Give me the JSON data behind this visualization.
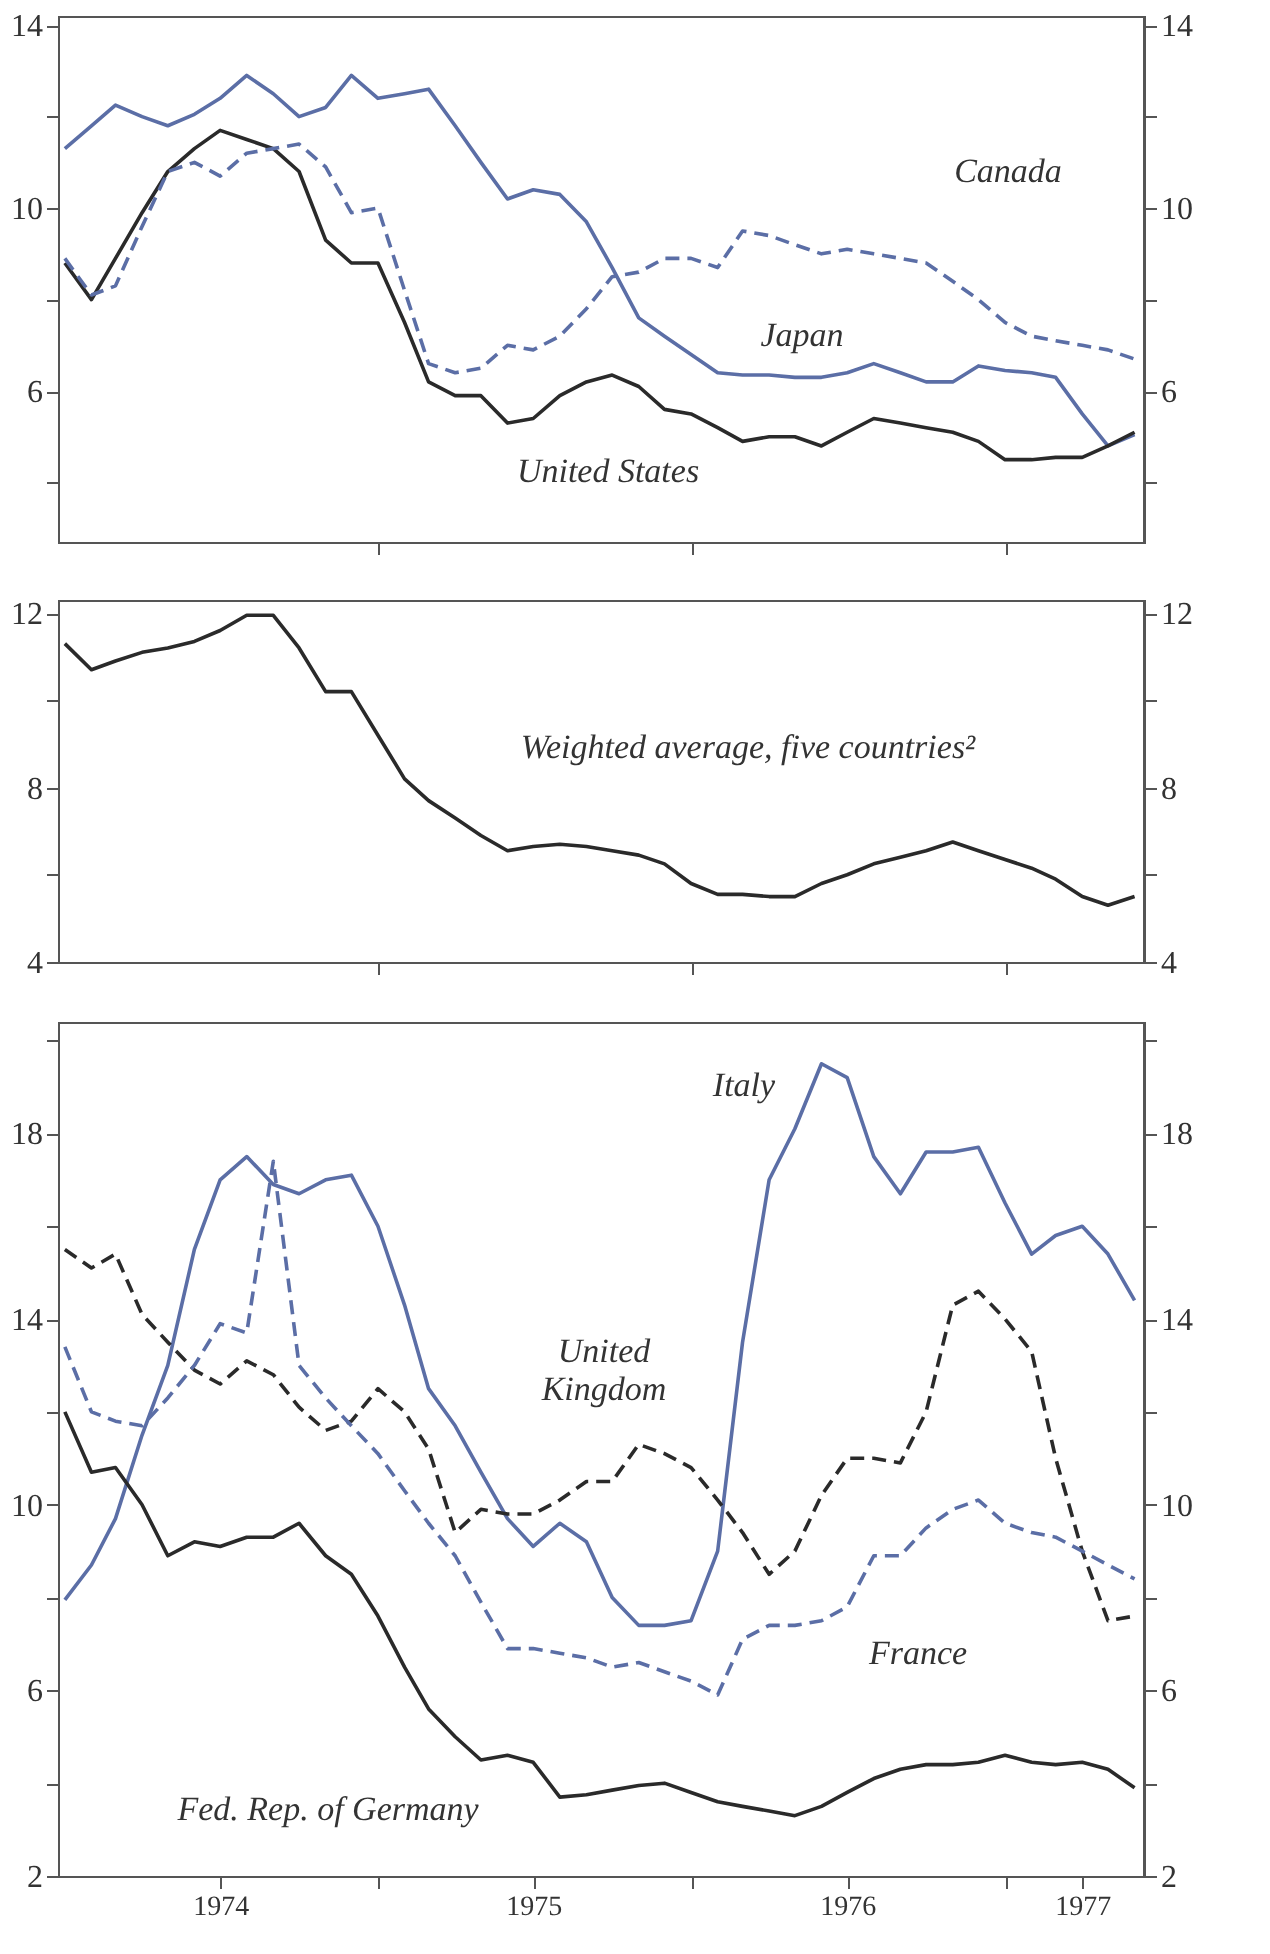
{
  "chart_data": [
    {
      "type": "line",
      "grid": false,
      "legend": false,
      "tick_labels": "y",
      "x": [
        "1974-01",
        "1974-02",
        "1974-03",
        "1974-04",
        "1974-05",
        "1974-06",
        "1974-07",
        "1974-08",
        "1974-09",
        "1974-10",
        "1974-11",
        "1974-12",
        "1975-01",
        "1975-02",
        "1975-03",
        "1975-04",
        "1975-05",
        "1975-06",
        "1975-07",
        "1975-08",
        "1975-09",
        "1975-10",
        "1975-11",
        "1975-12",
        "1976-01",
        "1976-02",
        "1976-03",
        "1976-04",
        "1976-05",
        "1976-06",
        "1976-07",
        "1976-08",
        "1976-09",
        "1976-10",
        "1976-11",
        "1976-12",
        "1977-01",
        "1977-02",
        "1977-03",
        "1977-04",
        "1977-05",
        "1977-06"
      ],
      "xlim": [
        "1973-12-24",
        "1977-06-12"
      ],
      "xticks": [
        {
          "value": "1975-01-01",
          "label": null
        },
        {
          "value": "1976-01-01",
          "label": null
        },
        {
          "value": "1977-01-01",
          "label": null
        }
      ],
      "ylim": [
        2.7,
        14.2
      ],
      "yticks": [
        {
          "value": 4,
          "label": null
        },
        6,
        {
          "value": 8,
          "label": null
        },
        10,
        {
          "value": 12,
          "label": null
        },
        14
      ],
      "y2lim": [
        2.7,
        14.2
      ],
      "y2ticks": [
        {
          "value": 4,
          "label": null
        },
        6,
        {
          "value": 8,
          "label": null
        },
        10,
        {
          "value": 12,
          "label": null
        },
        14
      ],
      "series": [
        {
          "name": "Japan",
          "color": "#5b6ea6",
          "line_style": "solid",
          "values": [
            11.3,
            11.8,
            12.25,
            12.0,
            11.8,
            12.05,
            12.4,
            12.9,
            12.5,
            12.0,
            12.2,
            12.9,
            12.4,
            12.5,
            12.6,
            11.8,
            11.0,
            10.2,
            10.4,
            10.3,
            9.7,
            8.7,
            7.6,
            7.2,
            6.8,
            6.4,
            6.35,
            6.35,
            6.3,
            6.3,
            6.4,
            6.6,
            6.4,
            6.2,
            6.2,
            6.55,
            6.45,
            6.4,
            6.3,
            5.5,
            4.8,
            5.05
          ]
        },
        {
          "name": "Canada",
          "color": "#5b6ea6",
          "line_style": "dashed",
          "values": [
            8.9,
            8.1,
            8.3,
            9.6,
            10.8,
            11.0,
            10.7,
            11.2,
            11.3,
            11.4,
            10.9,
            9.9,
            10.0,
            8.2,
            6.6,
            6.4,
            6.5,
            7.0,
            6.9,
            7.2,
            7.8,
            8.5,
            8.6,
            8.9,
            8.9,
            8.7,
            9.5,
            9.4,
            9.2,
            9.0,
            9.1,
            9.0,
            8.9,
            8.8,
            8.4,
            8.0,
            7.5,
            7.2,
            7.1,
            7.0,
            6.9,
            6.7
          ]
        },
        {
          "name": "United States",
          "color": "#2a2a2a",
          "line_style": "solid",
          "values": [
            8.8,
            8.0,
            8.9,
            9.9,
            10.8,
            11.3,
            11.7,
            11.5,
            11.3,
            10.8,
            9.3,
            8.8,
            8.8,
            7.5,
            6.2,
            5.9,
            5.9,
            5.3,
            5.4,
            5.9,
            6.2,
            6.35,
            6.1,
            5.6,
            5.5,
            5.2,
            4.9,
            5.0,
            5.0,
            4.8,
            5.1,
            5.4,
            5.3,
            5.2,
            5.1,
            4.9,
            4.5,
            4.5,
            4.55,
            4.55,
            4.8,
            5.1
          ]
        }
      ]
    },
    {
      "type": "line",
      "grid": false,
      "legend": false,
      "tick_labels": "y",
      "x": [
        "1974-01",
        "1974-02",
        "1974-03",
        "1974-04",
        "1974-05",
        "1974-06",
        "1974-07",
        "1974-08",
        "1974-09",
        "1974-10",
        "1974-11",
        "1974-12",
        "1975-01",
        "1975-02",
        "1975-03",
        "1975-04",
        "1975-05",
        "1975-06",
        "1975-07",
        "1975-08",
        "1975-09",
        "1975-10",
        "1975-11",
        "1975-12",
        "1976-01",
        "1976-02",
        "1976-03",
        "1976-04",
        "1976-05",
        "1976-06",
        "1976-07",
        "1976-08",
        "1976-09",
        "1976-10",
        "1976-11",
        "1976-12",
        "1977-01",
        "1977-02",
        "1977-03",
        "1977-04",
        "1977-05",
        "1977-06"
      ],
      "xlim": [
        "1973-12-24",
        "1977-06-12"
      ],
      "xticks": [
        {
          "value": "1975-01-01",
          "label": null
        },
        {
          "value": "1976-01-01",
          "label": null
        },
        {
          "value": "1977-01-01",
          "label": null
        }
      ],
      "ylim": [
        4,
        12.3
      ],
      "yticks": [
        4,
        {
          "value": 6,
          "label": null
        },
        8,
        {
          "value": 10,
          "label": null
        },
        12
      ],
      "y2lim": [
        4,
        12.3
      ],
      "y2ticks": [
        4,
        {
          "value": 6,
          "label": null
        },
        8,
        {
          "value": 10,
          "label": null
        },
        12
      ],
      "series": [
        {
          "name": "Weighted average, five countries²",
          "color": "#2a2a2a",
          "line_style": "solid",
          "values": [
            11.3,
            10.7,
            10.9,
            11.1,
            11.2,
            11.35,
            11.6,
            11.95,
            11.95,
            11.2,
            10.2,
            10.2,
            9.2,
            8.2,
            7.7,
            7.3,
            6.9,
            6.55,
            6.65,
            6.7,
            6.65,
            6.55,
            6.45,
            6.25,
            5.8,
            5.55,
            5.55,
            5.5,
            5.5,
            5.8,
            6.0,
            6.25,
            6.4,
            6.55,
            6.75,
            6.55,
            6.35,
            6.15,
            5.9,
            5.5,
            5.3,
            5.5
          ]
        }
      ]
    },
    {
      "type": "line",
      "grid": false,
      "legend": false,
      "x": [
        "1974-01",
        "1974-02",
        "1974-03",
        "1974-04",
        "1974-05",
        "1974-06",
        "1974-07",
        "1974-08",
        "1974-09",
        "1974-10",
        "1974-11",
        "1974-12",
        "1975-01",
        "1975-02",
        "1975-03",
        "1975-04",
        "1975-05",
        "1975-06",
        "1975-07",
        "1975-08",
        "1975-09",
        "1975-10",
        "1975-11",
        "1975-12",
        "1976-01",
        "1976-02",
        "1976-03",
        "1976-04",
        "1976-05",
        "1976-06",
        "1976-07",
        "1976-08",
        "1976-09",
        "1976-10",
        "1976-11",
        "1976-12",
        "1977-01",
        "1977-02",
        "1977-03",
        "1977-04",
        "1977-05",
        "1977-06"
      ],
      "xlim": [
        "1973-12-24",
        "1977-06-12"
      ],
      "xticks": [
        {
          "value": "1974-07-01",
          "label": "1974"
        },
        {
          "value": "1975-01-01",
          "label": null
        },
        {
          "value": "1975-07-01",
          "label": "1975"
        },
        {
          "value": "1976-01-01",
          "label": null
        },
        {
          "value": "1976-07-01",
          "label": "1976"
        },
        {
          "value": "1977-01-01",
          "label": null
        },
        {
          "value": "1977-04-01",
          "label": "1977"
        }
      ],
      "ylim": [
        2,
        20.4
      ],
      "yticks": [
        2,
        {
          "value": 4,
          "label": null
        },
        6,
        {
          "value": 8,
          "label": null
        },
        10,
        {
          "value": 12,
          "label": null
        },
        14,
        {
          "value": 16,
          "label": null
        },
        18,
        {
          "value": 20,
          "label": null
        }
      ],
      "y2lim": [
        2,
        20.4
      ],
      "y2ticks": [
        2,
        {
          "value": 4,
          "label": null
        },
        6,
        {
          "value": 8,
          "label": null
        },
        10,
        {
          "value": 12,
          "label": null
        },
        14,
        {
          "value": 16,
          "label": null
        },
        18,
        {
          "value": 20,
          "label": null
        }
      ],
      "series": [
        {
          "name": "Italy",
          "color": "#5b6ea6",
          "line_style": "solid",
          "values": [
            7.95,
            8.7,
            9.7,
            11.5,
            13.0,
            15.5,
            17.0,
            17.5,
            16.9,
            16.7,
            17.0,
            17.1,
            16.0,
            14.3,
            12.5,
            11.7,
            10.7,
            9.7,
            9.1,
            9.6,
            9.2,
            8.0,
            7.4,
            7.4,
            7.5,
            9.0,
            13.5,
            17.0,
            18.1,
            19.5,
            19.2,
            17.5,
            16.7,
            17.6,
            17.6,
            17.7,
            16.5,
            15.4,
            15.8,
            16.0,
            15.4,
            14.4
          ]
        },
        {
          "name": "United Kingdom",
          "color": "#2a2a2a",
          "line_style": "dashed",
          "values": [
            15.5,
            15.1,
            15.4,
            14.1,
            13.5,
            12.9,
            12.6,
            13.1,
            12.8,
            12.1,
            11.6,
            11.8,
            12.5,
            12.0,
            11.2,
            9.4,
            9.9,
            9.8,
            9.8,
            10.1,
            10.5,
            10.5,
            11.3,
            11.1,
            10.8,
            10.1,
            9.4,
            8.5,
            9.0,
            10.2,
            11.0,
            11.0,
            10.9,
            12.0,
            14.3,
            14.6,
            14.0,
            13.3,
            11.0,
            9.0,
            7.5,
            7.6
          ]
        },
        {
          "name": "France",
          "color": "#5b6ea6",
          "line_style": "dashed",
          "values": [
            13.4,
            12.0,
            11.8,
            11.7,
            12.3,
            13.0,
            13.9,
            13.7,
            17.4,
            13.0,
            12.3,
            11.7,
            11.1,
            10.3,
            9.6,
            8.9,
            7.9,
            6.9,
            6.9,
            6.8,
            6.7,
            6.5,
            6.6,
            6.4,
            6.2,
            5.9,
            7.1,
            7.4,
            7.4,
            7.5,
            7.8,
            8.9,
            8.9,
            9.5,
            9.9,
            10.1,
            9.6,
            9.4,
            9.3,
            9.0,
            8.7,
            8.4
          ]
        },
        {
          "name": "Fed. Rep. of Germany",
          "color": "#2a2a2a",
          "line_style": "solid",
          "values": [
            12.0,
            10.7,
            10.8,
            10.0,
            8.9,
            9.2,
            9.1,
            9.3,
            9.3,
            9.6,
            8.9,
            8.5,
            7.6,
            6.5,
            5.6,
            5.0,
            4.5,
            4.6,
            4.45,
            3.7,
            3.75,
            3.85,
            3.95,
            4.0,
            3.8,
            3.6,
            3.5,
            3.4,
            3.3,
            3.5,
            3.8,
            4.1,
            4.3,
            4.4,
            4.4,
            4.45,
            4.6,
            4.45,
            4.4,
            4.45,
            4.3,
            3.9
          ]
        }
      ]
    }
  ]
}
